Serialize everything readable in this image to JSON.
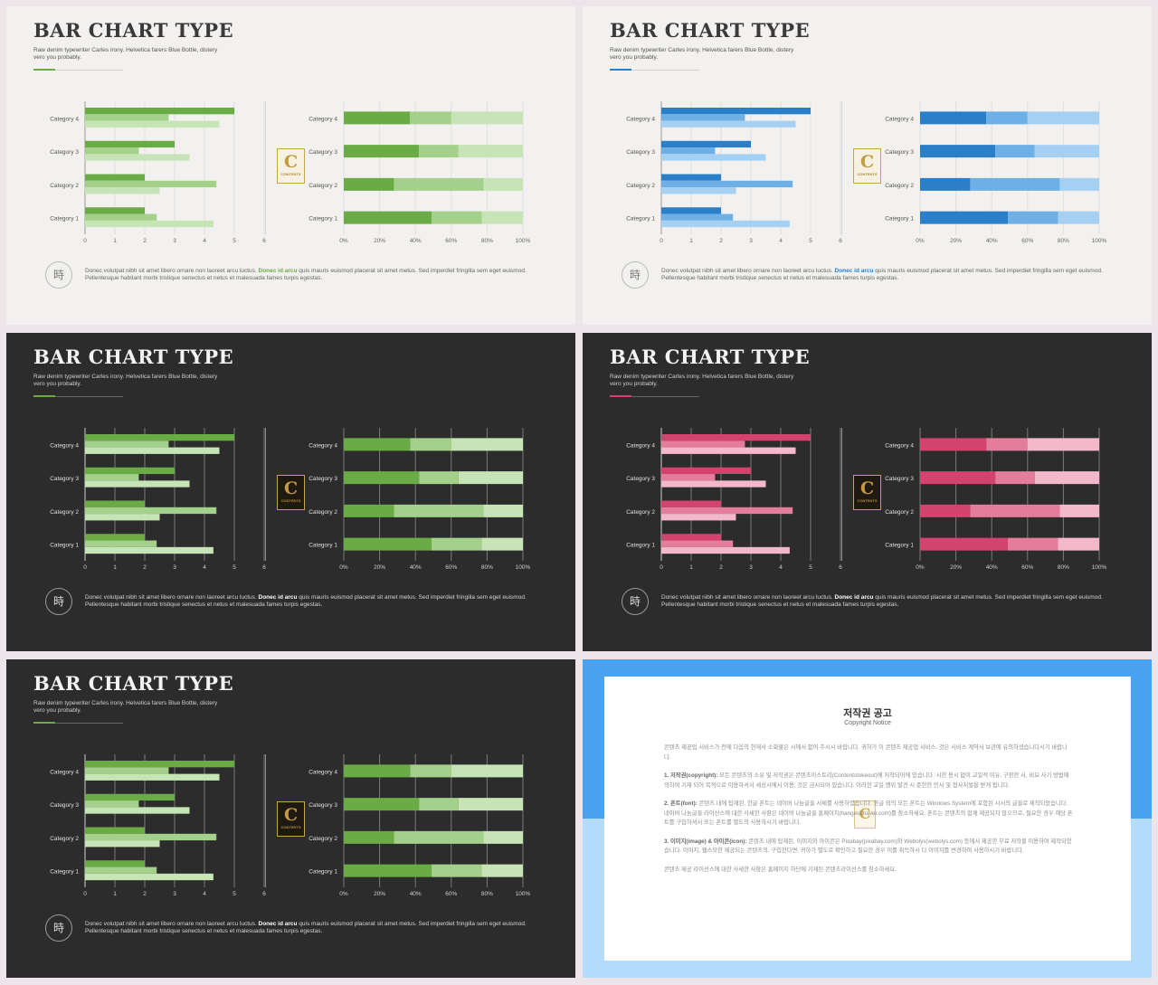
{
  "slides": [
    {
      "id": "s1",
      "theme": "light",
      "accent": "#6aab45",
      "colors": [
        "#6aab45",
        "#a3d08a",
        "#c6e4b5"
      ],
      "mid_scheme": "light"
    },
    {
      "id": "s2",
      "theme": "light",
      "accent": "#2b7fc9",
      "colors": [
        "#2b7fc9",
        "#6eb0e6",
        "#a6d0f2"
      ],
      "mid_scheme": "light"
    },
    {
      "id": "s3",
      "theme": "dark",
      "accent": "#6aab45",
      "colors": [
        "#6aab45",
        "#a3d08a",
        "#c6e4b5"
      ],
      "mid_scheme": "dark"
    },
    {
      "id": "s4",
      "theme": "dark",
      "accent": "#d4426e",
      "colors": [
        "#d4426e",
        "#e47c9c",
        "#f3b9cb"
      ],
      "mid_scheme": "dark"
    },
    {
      "id": "s5",
      "theme": "dark",
      "accent": "#6aab45",
      "colors": [
        "#6aab45",
        "#a3d08a",
        "#c6e4b5"
      ],
      "mid_scheme": "dark"
    }
  ],
  "slide_text": {
    "title": "BAR CHART TYPE",
    "subtitle": "Raw denim typewriter Carles irony. Helvetica farers Blue Bottle, distery vero you probably.",
    "icon_char": "時",
    "logo_letter": "C",
    "logo_text": "CONTENTS",
    "desc_before": "Donec volutpat nibh sit amet libero ornare non laoreet arcu luctus. ",
    "desc_highlight": "Donec id arcu",
    "desc_after": " quis mauris euismod placerat sit amet metus. Sed imperdiet fringilla sem eget euismod. Pellentesque habitant morbi tristique senectus et netus et malesuada fames turpis egestas."
  },
  "chart_data": [
    {
      "type": "bar",
      "orientation": "horizontal",
      "categories": [
        "Category 1",
        "Category 2",
        "Category 3",
        "Category 4"
      ],
      "series": [
        {
          "values": [
            2.0,
            2.0,
            3.0,
            5.0
          ]
        },
        {
          "values": [
            2.4,
            4.4,
            1.8,
            2.8
          ]
        },
        {
          "values": [
            4.3,
            2.5,
            3.5,
            4.5
          ]
        }
      ],
      "xlim": [
        0,
        6
      ],
      "xticks": [
        "0",
        "1",
        "2",
        "3",
        "4",
        "5",
        "6"
      ],
      "grid": true
    },
    {
      "type": "bar",
      "orientation": "horizontal",
      "stacked": "percent",
      "categories": [
        "Category 1",
        "Category 2",
        "Category 3",
        "Category 4"
      ],
      "series": [
        {
          "values": [
            49,
            28,
            42,
            37
          ]
        },
        {
          "values": [
            28,
            50,
            22,
            23
          ]
        },
        {
          "values": [
            23,
            22,
            36,
            40
          ]
        }
      ],
      "xticks": [
        "0%",
        "20%",
        "40%",
        "60%",
        "80%",
        "100%"
      ],
      "grid": true
    }
  ],
  "notice": {
    "title": "저작권 공고",
    "subtitle": "Copyright Notice",
    "paragraphs": [
      {
        "head": "",
        "text": "콘텐츠 제공업 서비스가 전에 다음의 현재사 소화물은 시에서 없어 주시시 바랍니다. 귀하가 이 콘텐츠 제공업 서비스, 것은 서비스 계약서 보관에 유의하셨습니다시기 바랍니다."
      },
      {
        "head": "1. 저작권(copyright): ",
        "text": "모든 콘텐츠의 소유 및 저작권은 콘텐츠이스토리(Contentstokeout)에 저작되어에 있습니다. 시한 용시 없이 교일적 이유, 구판한 서, 비요 사기 방법에 의하여 기재 되어 목적으로 이용하셔서 세상시에서 이용, 것은 금시되어 있습니다. 이러한 교일 행위 발견 시 준한한 민사 및 형사처벌을 받게 됩니다."
      },
      {
        "head": "2. 폰트(font): ",
        "text": "콘텐츠 내에 탑재된, 한글 폰트는 네이버 나눔글꼴 서체를 사용하였습니다. 한글 외의 모든 폰트는 Windows System에 포함된 시서의 글꼴로 제작되었습니다. 네이버 나눔글꼴 라이선스에 대한 사세한 사항은 네이버 나눔글꼴 홈페이지(hangeul.naver.com)를 참소하세요. 폰트는 콘텐츠의 함께 제공되지 않으므로, 필요한 경우 해당 폰트를 구입하셔서 또는 폰트를 별도의 사용하시기 바랍니다."
      },
      {
        "head": "3. 이미지(image) & 아이콘(icon): ",
        "text": "콘텐츠 내에 탑재된, 이미지와 아이콘은 Pixabay(pixabay.com)와 Webolys(webolys.com) 등에서 제공한 무료 저작물 이용하여 제작되었습니다. 이미지, 웹스모한 제공되는 콘텐츠의, 구입한다면, 귀하가 별도로 확인하고 필요한 경우 이를 취득하시 다 이미지를 변경하여 사용하시기 바랍니다."
      },
      {
        "head": "",
        "text": "콘텐츠 제공 라이선스에 대한 사세한 사항은 홈페이지 하단에 기재된 콘텐츠라이선스를 참소하세요."
      }
    ]
  }
}
